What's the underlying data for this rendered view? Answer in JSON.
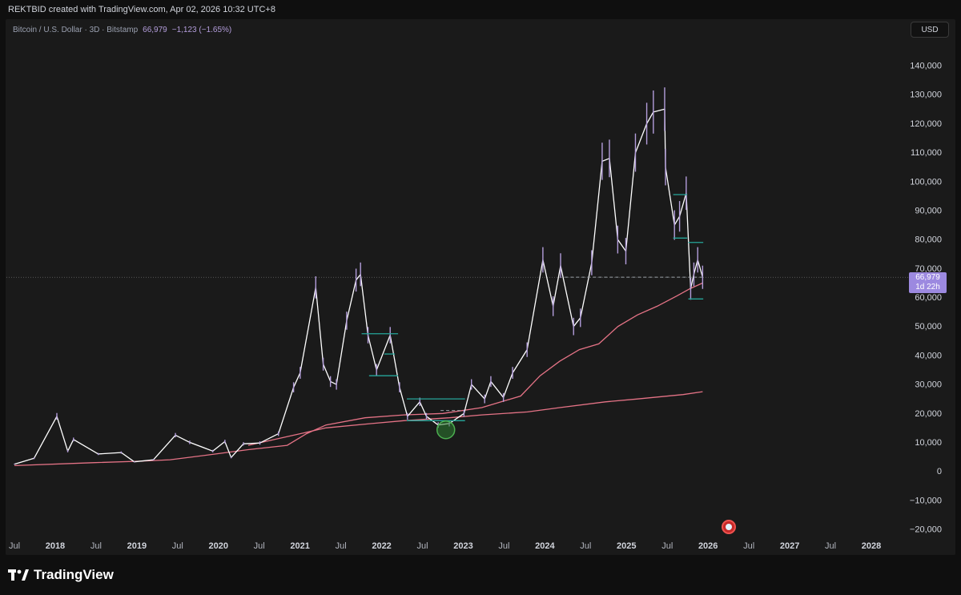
{
  "header": {
    "attribution": "REKTBID created with TradingView.com, Apr 02, 2026 10:32 UTC+8"
  },
  "legend": {
    "symbol": "Bitcoin / U.S. Dollar · 3D · Bitstamp",
    "last": "66,979",
    "change": "−1,123 (−1.65%)"
  },
  "currency": "USD",
  "price_tag": {
    "value": "66,979",
    "countdown": "1d 22h"
  },
  "brand": {
    "name": "TradingView"
  },
  "colors": {
    "background": "#1a1a1a",
    "price_line": "#ffffff",
    "price_accent": "#b39ddb",
    "ma_line": "#e57386",
    "box_lines": "#26a69a",
    "highlight_circle": "#2e7d32",
    "price_tag": "#9c89e0"
  },
  "chart_data": {
    "type": "line",
    "x_ticks": [
      "Jul",
      "2018",
      "Jul",
      "2019",
      "Jul",
      "2020",
      "Jul",
      "2021",
      "Jul",
      "2022",
      "Jul",
      "2023",
      "Jul",
      "2024",
      "Jul",
      "2025",
      "Jul",
      "2026",
      "Jul",
      "2027",
      "Jul",
      "2028"
    ],
    "y_ticks": [
      "140,000",
      "130,000",
      "120,000",
      "110,000",
      "100,000",
      "90,000",
      "80,000",
      "70,000",
      "60,000",
      "50,000",
      "40,000",
      "30,000",
      "20,000",
      "10,000",
      "0",
      "−10,000",
      "−20,000"
    ],
    "y_tick_values": [
      140000,
      130000,
      120000,
      110000,
      100000,
      90000,
      80000,
      70000,
      60000,
      50000,
      40000,
      30000,
      20000,
      10000,
      0,
      -10000,
      -20000
    ],
    "ylim": [
      -22000,
      142000
    ],
    "xlim": [
      "2017-06-01",
      "2028-06-01"
    ],
    "last_price": 66979,
    "series": [
      {
        "kind": "price",
        "x": [
          "2017-06-01",
          "2017-09-01",
          "2017-12-17",
          "2018-02-06",
          "2018-03-05",
          "2018-06-29",
          "2018-10-15",
          "2018-12-15",
          "2019-03-15",
          "2019-06-26",
          "2019-09-01",
          "2019-12-18",
          "2020-02-13",
          "2020-03-13",
          "2020-05-10",
          "2020-07-26",
          "2020-10-21",
          "2020-12-31",
          "2021-01-31",
          "2021-04-14",
          "2021-05-19",
          "2021-06-22",
          "2021-07-20",
          "2021-09-06",
          "2021-10-20",
          "2021-11-10",
          "2021-12-15",
          "2022-01-24",
          "2022-03-29",
          "2022-05-12",
          "2022-06-18",
          "2022-08-15",
          "2022-09-15",
          "2022-11-09",
          "2022-12-31",
          "2023-03-10",
          "2023-04-14",
          "2023-06-15",
          "2023-07-14",
          "2023-09-11",
          "2023-10-24",
          "2023-12-31",
          "2024-03-14",
          "2024-05-01",
          "2024-06-05",
          "2024-08-05",
          "2024-09-06",
          "2024-10-29",
          "2024-12-17",
          "2025-01-20",
          "2025-02-28",
          "2025-04-07",
          "2025-05-22",
          "2025-07-14",
          "2025-08-14",
          "2025-10-06",
          "2025-10-10",
          "2025-11-21",
          "2025-12-15",
          "2026-01-15",
          "2026-02-05",
          "2026-02-20",
          "2026-03-10",
          "2026-04-02"
        ],
        "y": [
          2500,
          4500,
          19000,
          7000,
          11000,
          6000,
          6500,
          3300,
          4000,
          12500,
          10000,
          7000,
          10300,
          4800,
          9500,
          9800,
          13000,
          29000,
          34000,
          63500,
          37000,
          31000,
          30000,
          52000,
          66000,
          68000,
          47000,
          35000,
          47000,
          29000,
          19000,
          24000,
          19000,
          16000,
          16500,
          20000,
          30000,
          25000,
          31000,
          25500,
          34000,
          42000,
          73000,
          57000,
          71000,
          50000,
          53000,
          72000,
          107000,
          108000,
          80000,
          76000,
          110000,
          120000,
          124000,
          125000,
          105000,
          85000,
          88000,
          96000,
          63000,
          68000,
          73000,
          66979
        ]
      },
      {
        "kind": "moving-average",
        "x": [
          "2017-06-01",
          "2018-06-01",
          "2019-01-01",
          "2019-06-01",
          "2020-01-01",
          "2020-06-01",
          "2020-12-01",
          "2021-03-01",
          "2021-06-01",
          "2021-12-01",
          "2022-06-01",
          "2022-12-01",
          "2023-06-01",
          "2023-12-01",
          "2024-03-01",
          "2024-06-01",
          "2024-09-01",
          "2024-12-01",
          "2025-03-01",
          "2025-06-01",
          "2025-09-01",
          "2025-12-01",
          "2026-02-01",
          "2026-04-02"
        ],
        "y": [
          2000,
          3000,
          3500,
          4000,
          6000,
          7500,
          9000,
          13000,
          16000,
          18500,
          19500,
          20000,
          22000,
          26000,
          33000,
          38000,
          42000,
          44000,
          50000,
          54000,
          57000,
          60500,
          63000,
          65000
        ]
      },
      {
        "kind": "moving-average",
        "x": [
          "2020-06-01",
          "2021-01-01",
          "2021-06-01",
          "2022-01-01",
          "2022-06-01",
          "2023-01-01",
          "2023-06-01",
          "2024-01-01",
          "2024-06-01",
          "2025-01-01",
          "2025-06-01",
          "2026-01-01",
          "2026-04-02"
        ],
        "y": [
          9000,
          12500,
          15000,
          16500,
          17500,
          18500,
          19500,
          20500,
          22000,
          24000,
          25000,
          26500,
          27500
        ]
      }
    ],
    "annotations": [
      {
        "type": "hline",
        "x0": "2021-11-15",
        "x1": "2022-05-05",
        "y": 47500
      },
      {
        "type": "hline",
        "x0": "2022-03-01",
        "x1": "2022-04-20",
        "y": 40500
      },
      {
        "type": "hline",
        "x0": "2021-12-20",
        "x1": "2022-05-05",
        "y": 33000
      },
      {
        "type": "hline",
        "x0": "2022-06-15",
        "x1": "2023-03-15",
        "y": 25000
      },
      {
        "type": "hline",
        "x0": "2022-06-15",
        "x1": "2023-03-15",
        "y": 17500
      },
      {
        "type": "hline",
        "x0": "2022-11-20",
        "x1": "2023-03-05",
        "y": 21000,
        "dashed": true
      },
      {
        "type": "hline",
        "x0": "2025-11-15",
        "x1": "2026-01-20",
        "y": 95500
      },
      {
        "type": "hline",
        "x0": "2025-11-15",
        "x1": "2026-01-20",
        "y": 80500
      },
      {
        "type": "hline",
        "x0": "2026-01-25",
        "x1": "2026-04-05",
        "y": 79000
      },
      {
        "type": "hline",
        "x0": "2026-01-25",
        "x1": "2026-04-05",
        "y": 59500
      },
      {
        "type": "hline",
        "x0": "2024-06-25",
        "x1": "2026-04-08",
        "y": 67000,
        "dashed": true
      },
      {
        "type": "circle",
        "x": "2022-12-15",
        "y": 16000
      }
    ]
  }
}
